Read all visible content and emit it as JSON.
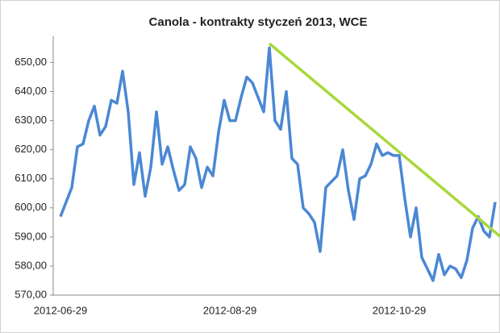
{
  "chart_data": {
    "type": "line",
    "title": "Canola - kontrakty styczeń 2013, WCE",
    "categories": [
      "2012-06-29",
      null,
      null,
      null,
      null,
      null,
      null,
      null,
      null,
      null,
      null,
      null,
      null,
      null,
      null,
      null,
      null,
      null,
      null,
      null,
      null,
      null,
      null,
      null,
      null,
      null,
      null,
      null,
      null,
      null,
      "2012-08-29",
      null,
      null,
      null,
      null,
      null,
      null,
      null,
      null,
      null,
      null,
      null,
      null,
      null,
      null,
      null,
      null,
      null,
      null,
      null,
      null,
      null,
      null,
      null,
      null,
      null,
      null,
      null,
      null,
      null,
      "2012-10-29",
      null,
      null,
      null,
      null,
      null,
      null,
      null,
      null,
      null,
      null,
      null,
      null,
      null,
      null,
      null,
      null,
      null
    ],
    "series": [
      {
        "color": "#4a88d4",
        "values": [
          597,
          602,
          607,
          621,
          622,
          630,
          635,
          625,
          628,
          637,
          636,
          647,
          633,
          608,
          619,
          604,
          614,
          633,
          615,
          621,
          613,
          606,
          608,
          621,
          617,
          607,
          614,
          611,
          626,
          637,
          630,
          630,
          638,
          645,
          643,
          638,
          633,
          655,
          630,
          627,
          640,
          617,
          615,
          600,
          598,
          595,
          585,
          607,
          609,
          611,
          620,
          606,
          596,
          610,
          611,
          615,
          622,
          618,
          619,
          618,
          618,
          603,
          590,
          600,
          583,
          579,
          575,
          584,
          577,
          580,
          579,
          576,
          582,
          593,
          597,
          592,
          590,
          602
        ]
      }
    ],
    "trendline": {
      "color": "#a8d83a",
      "start": {
        "index": 37,
        "value": 656.5
      },
      "end": {
        "index": 78,
        "value": 590
      }
    },
    "ylim": [
      570,
      659
    ],
    "yticks": [
      {
        "value": 570,
        "label": "570,00"
      },
      {
        "value": 580,
        "label": "580,00"
      },
      {
        "value": 590,
        "label": "590,00"
      },
      {
        "value": 600,
        "label": "600,00"
      },
      {
        "value": 610,
        "label": "610,00"
      },
      {
        "value": 620,
        "label": "620,00"
      },
      {
        "value": 630,
        "label": "630,00"
      },
      {
        "value": 640,
        "label": "640,00"
      },
      {
        "value": 650,
        "label": "650,00"
      }
    ],
    "grid": false
  }
}
